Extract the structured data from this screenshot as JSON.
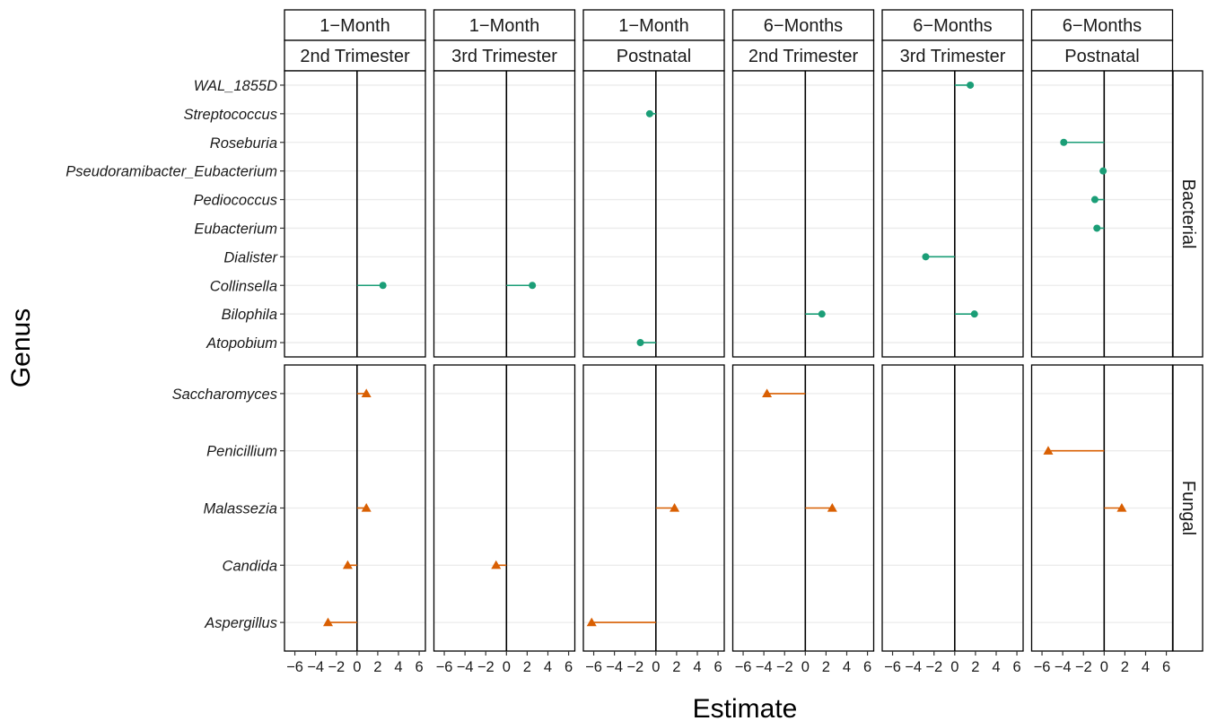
{
  "chart_data": {
    "type": "lollipop",
    "xlabel": "Estimate",
    "ylabel": "Genus",
    "xlim": [
      -7,
      6.6
    ],
    "x_ticks": [
      -6,
      -4,
      -2,
      0,
      2,
      4,
      6
    ],
    "x_tick_labels": [
      "−6",
      "−4",
      "−2",
      "0",
      "2",
      "4",
      "6"
    ],
    "grid": "horizontal",
    "columns": [
      {
        "strip1": "1−Month",
        "strip2": "2nd Trimester"
      },
      {
        "strip1": "1−Month",
        "strip2": "3rd Trimester"
      },
      {
        "strip1": "1−Month",
        "strip2": "Postnatal"
      },
      {
        "strip1": "6−Months",
        "strip2": "2nd Trimester"
      },
      {
        "strip1": "6−Months",
        "strip2": "3rd Trimester"
      },
      {
        "strip1": "6−Months",
        "strip2": "Postnatal"
      }
    ],
    "rows": [
      {
        "label": "Bacterial",
        "color": "#1b9e77",
        "shape": "circle",
        "genera": [
          "WAL_1855D",
          "Streptococcus",
          "Roseburia",
          "Pseudoramibacter_Eubacterium",
          "Pediococcus",
          "Eubacterium",
          "Dialister",
          "Collinsella",
          "Bilophila",
          "Atopobium"
        ]
      },
      {
        "label": "Fungal",
        "color": "#d95f02",
        "shape": "triangle",
        "genera": [
          "Saccharomyces",
          "Penicillium",
          "Malassezia",
          "Candida",
          "Aspergillus"
        ]
      }
    ],
    "points": [
      {
        "row": 0,
        "col": 0,
        "genus": "Collinsella",
        "x": 2.5
      },
      {
        "row": 0,
        "col": 1,
        "genus": "Collinsella",
        "x": 2.5
      },
      {
        "row": 0,
        "col": 2,
        "genus": "Streptococcus",
        "x": -0.6
      },
      {
        "row": 0,
        "col": 2,
        "genus": "Atopobium",
        "x": -1.5
      },
      {
        "row": 0,
        "col": 3,
        "genus": "Bilophila",
        "x": 1.6
      },
      {
        "row": 0,
        "col": 4,
        "genus": "WAL_1855D",
        "x": 1.5
      },
      {
        "row": 0,
        "col": 4,
        "genus": "Dialister",
        "x": -2.8
      },
      {
        "row": 0,
        "col": 4,
        "genus": "Bilophila",
        "x": 1.9
      },
      {
        "row": 0,
        "col": 5,
        "genus": "Roseburia",
        "x": -3.9
      },
      {
        "row": 0,
        "col": 5,
        "genus": "Pseudoramibacter_Eubacterium",
        "x": -0.1
      },
      {
        "row": 0,
        "col": 5,
        "genus": "Pediococcus",
        "x": -0.9
      },
      {
        "row": 0,
        "col": 5,
        "genus": "Eubacterium",
        "x": -0.7
      },
      {
        "row": 1,
        "col": 0,
        "genus": "Saccharomyces",
        "x": 0.9
      },
      {
        "row": 1,
        "col": 0,
        "genus": "Malassezia",
        "x": 0.9
      },
      {
        "row": 1,
        "col": 0,
        "genus": "Candida",
        "x": -0.9
      },
      {
        "row": 1,
        "col": 0,
        "genus": "Aspergillus",
        "x": -2.8
      },
      {
        "row": 1,
        "col": 1,
        "genus": "Candida",
        "x": -1.0
      },
      {
        "row": 1,
        "col": 2,
        "genus": "Malassezia",
        "x": 1.8
      },
      {
        "row": 1,
        "col": 2,
        "genus": "Aspergillus",
        "x": -6.2
      },
      {
        "row": 1,
        "col": 3,
        "genus": "Saccharomyces",
        "x": -3.7
      },
      {
        "row": 1,
        "col": 3,
        "genus": "Malassezia",
        "x": 2.6
      },
      {
        "row": 1,
        "col": 5,
        "genus": "Penicillium",
        "x": -5.4
      },
      {
        "row": 1,
        "col": 5,
        "genus": "Malassezia",
        "x": 1.7
      }
    ]
  }
}
